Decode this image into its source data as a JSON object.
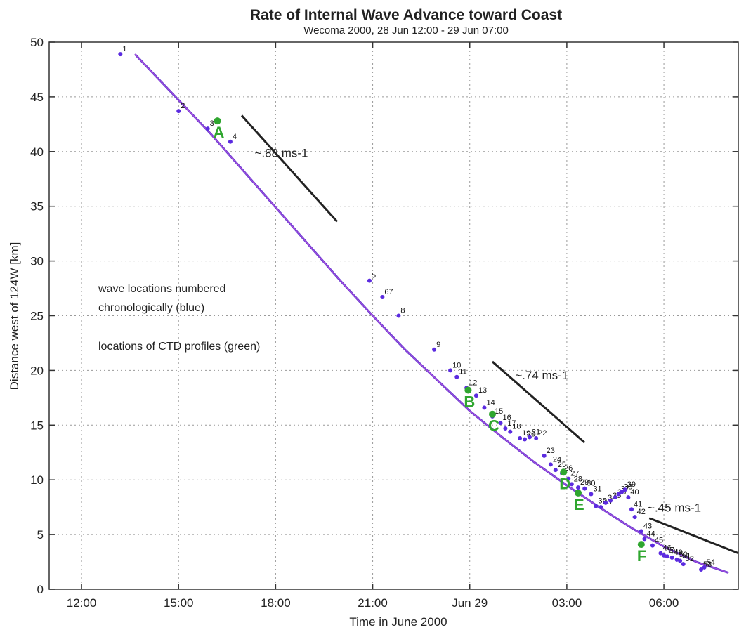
{
  "chart_data": {
    "type": "scatter",
    "title": "Rate of Internal Wave Advance toward Coast",
    "subtitle": "Wecoma 2000, 28 Jun 12:00 - 29 Jun 07:00",
    "xlabel": "Time in June 2000",
    "ylabel": "Distance west of 124W [km]",
    "xlim": [
      11.0,
      32.3
    ],
    "ylim": [
      0,
      50
    ],
    "x_units": "hours since 28 Jun 00:00",
    "x_ticks": [
      {
        "value": 12,
        "label": "12:00"
      },
      {
        "value": 15,
        "label": "15:00"
      },
      {
        "value": 18,
        "label": "18:00"
      },
      {
        "value": 21,
        "label": "21:00"
      },
      {
        "value": 24,
        "label": "Jun 29"
      },
      {
        "value": 27,
        "label": "03:00"
      },
      {
        "value": 30,
        "label": "06:00"
      }
    ],
    "y_ticks": [
      0,
      5,
      10,
      15,
      20,
      25,
      30,
      35,
      40,
      45,
      50
    ],
    "grid": true,
    "colors": {
      "wave_points": "#5b2be0",
      "ctd_points": "#2fa62f",
      "fit_line": "#6a3fd0",
      "fit_line_inner": "#b04de0",
      "rate_lines": "#222222",
      "axis": "#333333",
      "grid": "#9a9a9a"
    },
    "fit_curve": {
      "x": [
        13.65,
        16,
        18,
        20,
        21,
        22,
        23,
        24,
        25,
        26,
        27,
        28,
        29,
        30,
        31,
        32
      ],
      "y": [
        48.9,
        41.6,
        34.9,
        28.2,
        25.0,
        21.9,
        19.1,
        16.3,
        13.9,
        11.6,
        9.5,
        7.5,
        5.6,
        3.9,
        2.5,
        1.5
      ]
    },
    "wave_locations": [
      {
        "label": "1",
        "x": 13.2,
        "y": 48.9
      },
      {
        "label": "2",
        "x": 15.0,
        "y": 43.7
      },
      {
        "label": "3",
        "x": 15.9,
        "y": 42.1
      },
      {
        "label": "4",
        "x": 16.6,
        "y": 40.9
      },
      {
        "label": "5",
        "x": 20.9,
        "y": 28.2
      },
      {
        "label": "67",
        "x": 21.3,
        "y": 26.7
      },
      {
        "label": "8",
        "x": 21.8,
        "y": 25.0
      },
      {
        "label": "9",
        "x": 22.9,
        "y": 21.9
      },
      {
        "label": "10",
        "x": 23.4,
        "y": 20.0
      },
      {
        "label": "11",
        "x": 23.6,
        "y": 19.4
      },
      {
        "label": "12",
        "x": 23.9,
        "y": 18.4
      },
      {
        "label": "13",
        "x": 24.2,
        "y": 17.7
      },
      {
        "label": "14",
        "x": 24.45,
        "y": 16.6
      },
      {
        "label": "15",
        "x": 24.7,
        "y": 15.8
      },
      {
        "label": "16",
        "x": 24.95,
        "y": 15.2
      },
      {
        "label": "17",
        "x": 25.1,
        "y": 14.7
      },
      {
        "label": "18",
        "x": 25.25,
        "y": 14.4
      },
      {
        "label": "19",
        "x": 25.55,
        "y": 13.8
      },
      {
        "label": "20",
        "x": 25.7,
        "y": 13.7
      },
      {
        "label": "21",
        "x": 25.85,
        "y": 13.9
      },
      {
        "label": "22",
        "x": 26.05,
        "y": 13.8
      },
      {
        "label": "23",
        "x": 26.3,
        "y": 12.2
      },
      {
        "label": "24",
        "x": 26.5,
        "y": 11.4
      },
      {
        "label": "25",
        "x": 26.65,
        "y": 10.9
      },
      {
        "label": "26",
        "x": 26.85,
        "y": 10.6
      },
      {
        "label": "27",
        "x": 27.05,
        "y": 10.1
      },
      {
        "label": "28",
        "x": 27.15,
        "y": 9.6
      },
      {
        "label": "29",
        "x": 27.35,
        "y": 9.3
      },
      {
        "label": "30",
        "x": 27.55,
        "y": 9.2
      },
      {
        "label": "31",
        "x": 27.75,
        "y": 8.7
      },
      {
        "label": "32",
        "x": 27.9,
        "y": 7.6
      },
      {
        "label": "33",
        "x": 28.05,
        "y": 7.5
      },
      {
        "label": "34",
        "x": 28.2,
        "y": 7.9
      },
      {
        "label": "35",
        "x": 28.35,
        "y": 8.1
      },
      {
        "label": "36",
        "x": 28.5,
        "y": 8.4
      },
      {
        "label": "37",
        "x": 28.6,
        "y": 8.7
      },
      {
        "label": "38",
        "x": 28.7,
        "y": 8.9
      },
      {
        "label": "39",
        "x": 28.8,
        "y": 9.1
      },
      {
        "label": "40",
        "x": 28.9,
        "y": 8.4
      },
      {
        "label": "41",
        "x": 29.0,
        "y": 7.3
      },
      {
        "label": "42",
        "x": 29.1,
        "y": 6.6
      },
      {
        "label": "43",
        "x": 29.3,
        "y": 5.3
      },
      {
        "label": "44",
        "x": 29.4,
        "y": 4.6
      },
      {
        "label": "45",
        "x": 29.65,
        "y": 4.0
      },
      {
        "label": "46",
        "x": 29.9,
        "y": 3.3
      },
      {
        "label": "47",
        "x": 30.0,
        "y": 3.1
      },
      {
        "label": "48",
        "x": 30.1,
        "y": 3.0
      },
      {
        "label": "49",
        "x": 30.25,
        "y": 2.9
      },
      {
        "label": "50",
        "x": 30.4,
        "y": 2.7
      },
      {
        "label": "51",
        "x": 30.5,
        "y": 2.6
      },
      {
        "label": "52",
        "x": 30.6,
        "y": 2.3
      },
      {
        "label": "53",
        "x": 31.15,
        "y": 1.8
      },
      {
        "label": "54",
        "x": 31.25,
        "y": 2.0
      }
    ],
    "ctd_profiles": [
      {
        "label": "A",
        "x": 16.2,
        "y": 42.8
      },
      {
        "label": "B",
        "x": 23.95,
        "y": 18.2
      },
      {
        "label": "C",
        "x": 24.7,
        "y": 16.0
      },
      {
        "label": "D",
        "x": 26.9,
        "y": 10.7
      },
      {
        "label": "E",
        "x": 27.35,
        "y": 8.8
      },
      {
        "label": "F",
        "x": 29.3,
        "y": 4.1
      }
    ],
    "rate_lines": [
      {
        "label": "~.88 ms-1",
        "x1": 16.95,
        "y1": 43.3,
        "x2": 19.9,
        "y2": 33.6,
        "label_x": 17.35,
        "label_y": 39.5
      },
      {
        "label": "~.74 ms-1",
        "x1": 24.7,
        "y1": 20.8,
        "x2": 27.55,
        "y2": 13.4,
        "label_x": 25.4,
        "label_y": 19.2
      },
      {
        "label": "~.45 ms-1",
        "x1": 29.55,
        "y1": 6.5,
        "x2": 32.3,
        "y2": 3.3,
        "label_x": 29.5,
        "label_y": 7.1
      }
    ],
    "annotations": [
      "wave locations numbered",
      "chronologically (blue)",
      "locations of CTD profiles (green)"
    ]
  }
}
